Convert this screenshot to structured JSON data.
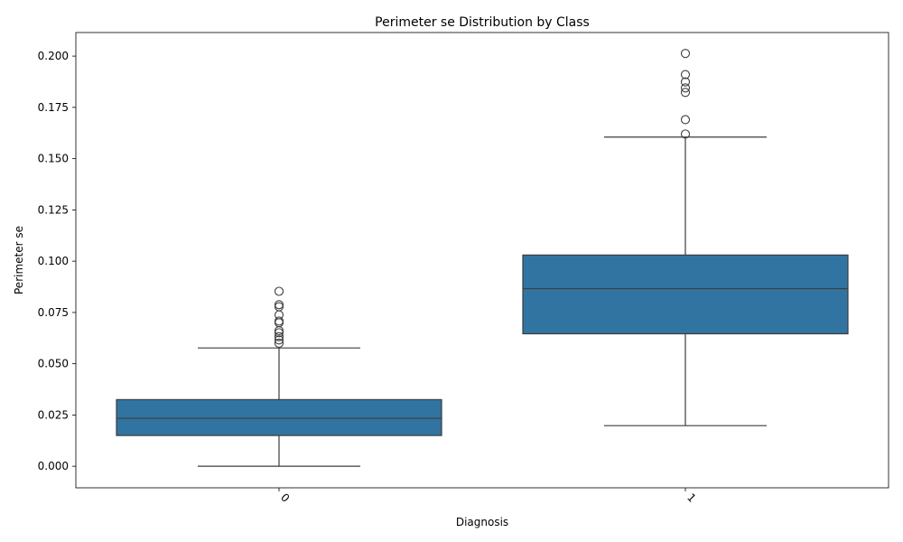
{
  "chart_data": {
    "type": "box",
    "title": "Perimeter se Distribution by Class",
    "xlabel": "Diagnosis",
    "ylabel": "Perimeter se",
    "ylim": [
      -0.0105,
      0.2115
    ],
    "yticks": [
      0.0,
      0.025,
      0.05,
      0.075,
      0.1,
      0.125,
      0.15,
      0.175,
      0.2
    ],
    "ytick_labels": [
      "0.000",
      "0.025",
      "0.050",
      "0.075",
      "0.100",
      "0.125",
      "0.150",
      "0.175",
      "0.200"
    ],
    "categories": [
      "0",
      "1"
    ],
    "box_color": "#3274a1",
    "line_color": "#3d3d3d",
    "grid": false,
    "boxes": [
      {
        "category": "0",
        "whisker_low": 0.0,
        "q1": 0.015,
        "median": 0.0234,
        "q3": 0.0325,
        "whisker_high": 0.0577,
        "outliers": [
          0.0853,
          0.0788,
          0.0778,
          0.0738,
          0.0708,
          0.07,
          0.0661,
          0.0651,
          0.0632,
          0.0616,
          0.06
        ]
      },
      {
        "category": "1",
        "whisker_low": 0.0198,
        "q1": 0.0646,
        "median": 0.0866,
        "q3": 0.103,
        "whisker_high": 0.1605,
        "outliers": [
          0.2013,
          0.191,
          0.1874,
          0.1845,
          0.1823,
          0.169,
          0.162
        ]
      }
    ]
  }
}
